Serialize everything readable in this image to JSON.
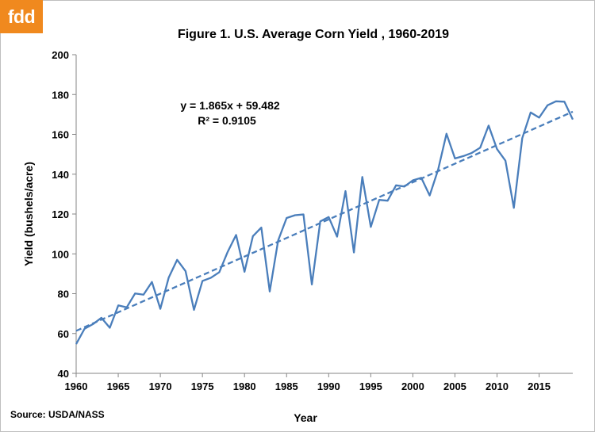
{
  "logo": {
    "text": "fdd",
    "bg_color": "#f0891e"
  },
  "source": "Source: USDA/NASS",
  "chart_data": {
    "type": "line",
    "title": "Figure 1. U.S. Average Corn Yield , 1960-2019",
    "xlabel": "Year",
    "ylabel": "Yield (bushels/acre)",
    "xlim": [
      1960,
      2019
    ],
    "ylim": [
      40,
      200
    ],
    "x_ticks": [
      1960,
      1965,
      1970,
      1975,
      1980,
      1985,
      1990,
      1995,
      2000,
      2005,
      2010,
      2015
    ],
    "y_ticks": [
      40,
      60,
      80,
      100,
      120,
      140,
      160,
      180,
      200
    ],
    "grid": false,
    "legend": "none",
    "line_color": "#4a7ebb",
    "series": [
      {
        "name": "",
        "style": "solid",
        "x": [
          1960,
          1961,
          1962,
          1963,
          1964,
          1965,
          1966,
          1967,
          1968,
          1969,
          1970,
          1971,
          1972,
          1973,
          1974,
          1975,
          1976,
          1977,
          1978,
          1979,
          1980,
          1981,
          1982,
          1983,
          1984,
          1985,
          1986,
          1987,
          1988,
          1989,
          1990,
          1991,
          1992,
          1993,
          1994,
          1995,
          1996,
          1997,
          1998,
          1999,
          2000,
          2001,
          2002,
          2003,
          2004,
          2005,
          2006,
          2007,
          2008,
          2009,
          2010,
          2011,
          2012,
          2013,
          2014,
          2015,
          2016,
          2017,
          2018,
          2019
        ],
        "y": [
          54.7,
          62.4,
          64.7,
          67.9,
          62.9,
          74.1,
          73.1,
          80.1,
          79.5,
          85.9,
          72.4,
          88.1,
          97.0,
          91.3,
          71.9,
          86.4,
          88.0,
          90.8,
          101.0,
          109.5,
          91.0,
          108.9,
          113.2,
          81.1,
          106.7,
          118.0,
          119.4,
          119.8,
          84.6,
          116.3,
          118.5,
          108.6,
          131.5,
          100.7,
          138.6,
          113.5,
          127.1,
          126.7,
          134.4,
          133.8,
          136.9,
          138.2,
          129.3,
          142.2,
          160.3,
          147.9,
          149.1,
          150.7,
          153.3,
          164.4,
          152.6,
          146.8,
          123.1,
          158.1,
          171.0,
          168.4,
          174.6,
          176.6,
          176.4,
          167.5
        ]
      }
    ],
    "trendline": {
      "style": "dashed",
      "equation": "y = 1.865x + 59.482",
      "r_squared": "R² = 0.9105",
      "slope": 1.865,
      "intercept": 59.482,
      "index_start_year": 1959
    }
  }
}
